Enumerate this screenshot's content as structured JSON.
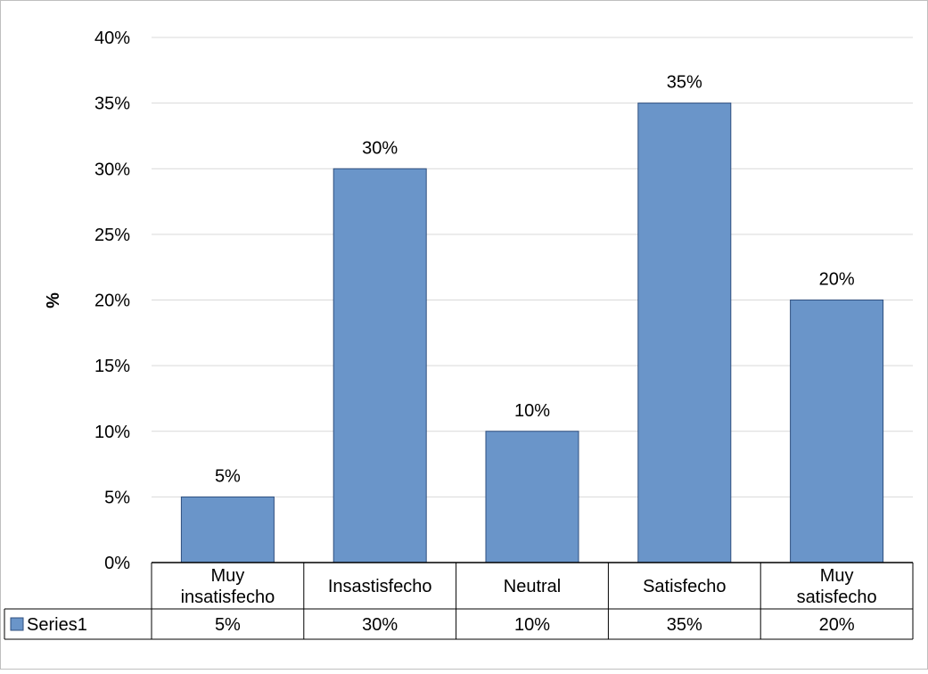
{
  "chart_data": {
    "type": "bar",
    "categories": [
      [
        "Muy",
        "insatisfecho"
      ],
      [
        "Insastisfecho"
      ],
      [
        "Neutral"
      ],
      [
        "Satisfecho"
      ],
      [
        "Muy",
        "satisfecho"
      ]
    ],
    "series": [
      {
        "name": "Series1",
        "values": [
          5,
          30,
          10,
          35,
          20
        ],
        "color": "#6a95c9",
        "border": "#2f4f7f"
      }
    ],
    "data_labels": [
      "5%",
      "30%",
      "10%",
      "35%",
      "20%"
    ],
    "title": "",
    "xlabel": "",
    "ylabel": "%",
    "ylim": [
      0,
      40
    ],
    "yticks": [
      0,
      5,
      10,
      15,
      20,
      25,
      30,
      35,
      40
    ],
    "ytick_labels": [
      "0%",
      "5%",
      "10%",
      "15%",
      "20%",
      "25%",
      "30%",
      "35%",
      "40%"
    ],
    "grid": true,
    "legend": "data-table-left",
    "data_table": true,
    "colors": {
      "gridline": "#d9d9d9",
      "frame": "#bfbfbf",
      "table_border": "#000000",
      "text": "#000000"
    }
  }
}
